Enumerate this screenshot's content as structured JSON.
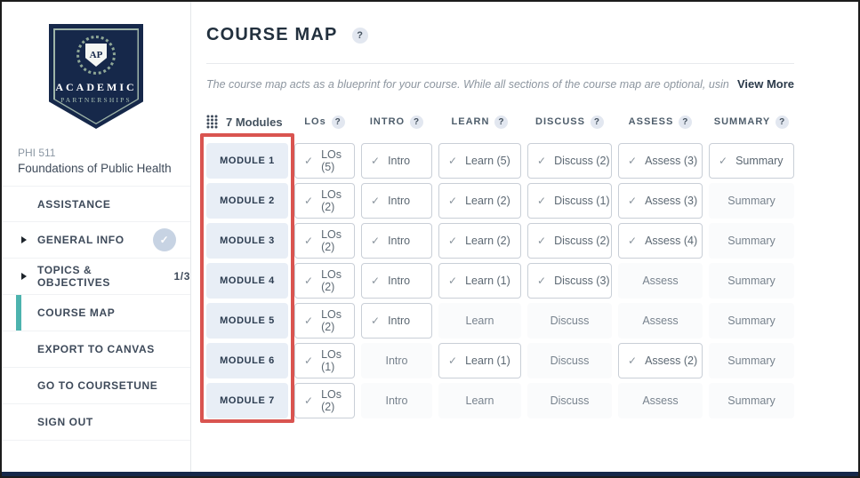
{
  "colors": {
    "navy": "#16284a",
    "accent_teal": "#4db3ae",
    "frame_red": "#d95450",
    "module_bg": "#e8eef6"
  },
  "glyphs": {
    "check": "✓",
    "help": "?"
  },
  "sidebar": {
    "logo": {
      "monogram": "AP",
      "line1": "ACADEMIC",
      "line2": "PARTNERSHIPS"
    },
    "course_code": "PHI 511",
    "course_title": "Foundations of Public Health",
    "items": [
      {
        "label": "ASSISTANCE"
      },
      {
        "label": "GENERAL INFO",
        "arrow": true,
        "check": true
      },
      {
        "label": "TOPICS & OBJECTIVES",
        "arrow": true,
        "badge": "1/3"
      },
      {
        "label": "COURSE MAP",
        "active": true
      },
      {
        "label": "EXPORT TO CANVAS"
      },
      {
        "label": "GO TO COURSETUNE"
      },
      {
        "label": "SIGN OUT"
      }
    ]
  },
  "main": {
    "title": "COURSE MAP",
    "description": "The course map acts as a blueprint for your course. While all sections of the course map are optional, using them w...",
    "view_more": "View More",
    "modules_count_label": "7 Modules",
    "columns": [
      {
        "label": "LOs"
      },
      {
        "label": "INTRO"
      },
      {
        "label": "LEARN"
      },
      {
        "label": "DISCUSS"
      },
      {
        "label": "ASSESS"
      },
      {
        "label": "SUMMARY"
      }
    ],
    "rows": [
      {
        "module": "MODULE 1",
        "cells": [
          {
            "label": "LOs (5)",
            "checked": true
          },
          {
            "label": "Intro",
            "checked": true
          },
          {
            "label": "Learn (5)",
            "checked": true
          },
          {
            "label": "Discuss (2)",
            "checked": true
          },
          {
            "label": "Assess (3)",
            "checked": true
          },
          {
            "label": "Summary",
            "checked": true
          }
        ]
      },
      {
        "module": "MODULE 2",
        "cells": [
          {
            "label": "LOs (2)",
            "checked": true
          },
          {
            "label": "Intro",
            "checked": true
          },
          {
            "label": "Learn (2)",
            "checked": true
          },
          {
            "label": "Discuss (1)",
            "checked": true
          },
          {
            "label": "Assess (3)",
            "checked": true
          },
          {
            "label": "Summary",
            "checked": false
          }
        ]
      },
      {
        "module": "MODULE 3",
        "cells": [
          {
            "label": "LOs (2)",
            "checked": true
          },
          {
            "label": "Intro",
            "checked": true
          },
          {
            "label": "Learn (2)",
            "checked": true
          },
          {
            "label": "Discuss (2)",
            "checked": true
          },
          {
            "label": "Assess (4)",
            "checked": true
          },
          {
            "label": "Summary",
            "checked": false
          }
        ]
      },
      {
        "module": "MODULE 4",
        "cells": [
          {
            "label": "LOs (2)",
            "checked": true
          },
          {
            "label": "Intro",
            "checked": true
          },
          {
            "label": "Learn (1)",
            "checked": true
          },
          {
            "label": "Discuss (3)",
            "checked": true
          },
          {
            "label": "Assess",
            "checked": false
          },
          {
            "label": "Summary",
            "checked": false
          }
        ]
      },
      {
        "module": "MODULE 5",
        "cells": [
          {
            "label": "LOs (2)",
            "checked": true
          },
          {
            "label": "Intro",
            "checked": true
          },
          {
            "label": "Learn",
            "checked": false
          },
          {
            "label": "Discuss",
            "checked": false
          },
          {
            "label": "Assess",
            "checked": false
          },
          {
            "label": "Summary",
            "checked": false
          }
        ]
      },
      {
        "module": "MODULE 6",
        "cells": [
          {
            "label": "LOs (1)",
            "checked": true
          },
          {
            "label": "Intro",
            "checked": false
          },
          {
            "label": "Learn (1)",
            "checked": true
          },
          {
            "label": "Discuss",
            "checked": false
          },
          {
            "label": "Assess (2)",
            "checked": true
          },
          {
            "label": "Summary",
            "checked": false
          }
        ]
      },
      {
        "module": "MODULE 7",
        "cells": [
          {
            "label": "LOs (2)",
            "checked": true
          },
          {
            "label": "Intro",
            "checked": false
          },
          {
            "label": "Learn",
            "checked": false
          },
          {
            "label": "Discuss",
            "checked": false
          },
          {
            "label": "Assess",
            "checked": false
          },
          {
            "label": "Summary",
            "checked": false
          }
        ]
      }
    ]
  }
}
